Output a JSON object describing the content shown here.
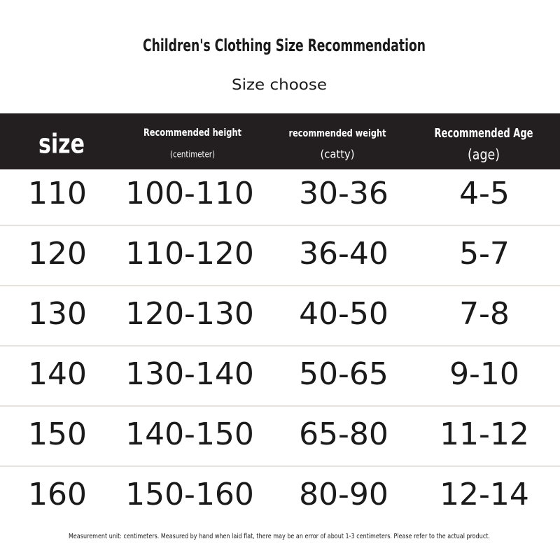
{
  "header": {
    "title": "Children's Clothing Size Recommendation",
    "subtitle": "Size choose"
  },
  "table": {
    "columns": [
      {
        "label": "size"
      },
      {
        "label": "Recommended height",
        "unit": "(centimeter)"
      },
      {
        "label": "recommended weight",
        "unit": "(catty)"
      },
      {
        "label": "Recommended Age",
        "unit": "(age)"
      }
    ],
    "rows": [
      [
        "110",
        "100-110",
        "30-36",
        "4-5"
      ],
      [
        "120",
        "110-120",
        "36-40",
        "5-7"
      ],
      [
        "130",
        "120-130",
        "40-50",
        "7-8"
      ],
      [
        "140",
        "130-140",
        "50-65",
        "9-10"
      ],
      [
        "150",
        "140-150",
        "65-80",
        "11-12"
      ],
      [
        "160",
        "150-160",
        "80-90",
        "12-14"
      ]
    ]
  },
  "footnote": "Measurement unit: centimeters. Measured by hand when laid flat, there may be an error of about 1-3 centimeters. Please refer to the actual product."
}
